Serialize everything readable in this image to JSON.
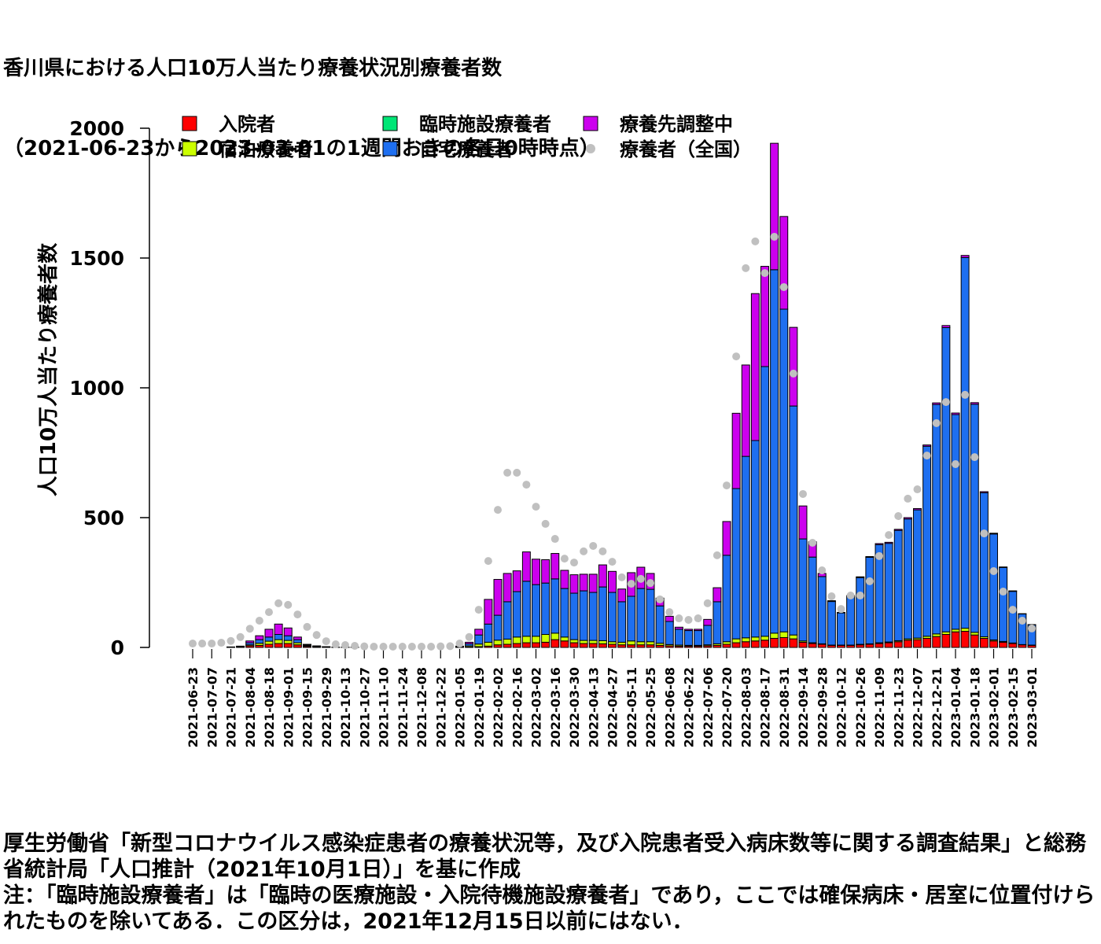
{
  "chart_data": {
    "type": "stacked_bar",
    "title": "香川県における人口10万人当たり療養状況別療養者数",
    "subtitle": "（2021-06-23から2023-03-01の1週間おきの各日0時時点）",
    "y_label": "人口10万人当たり療養者数",
    "categories": [
      "2021-06-23",
      null,
      "2021-07-07",
      null,
      "2021-07-21",
      null,
      "2021-08-04",
      null,
      "2021-08-18",
      null,
      "2021-09-01",
      null,
      "2021-09-15",
      null,
      "2021-09-29",
      null,
      "2021-10-13",
      null,
      "2021-10-27",
      null,
      "2021-11-10",
      null,
      "2021-11-24",
      null,
      "2021-12-08",
      null,
      "2021-12-22",
      null,
      "2022-01-05",
      null,
      "2022-01-19",
      null,
      "2022-02-02",
      null,
      "2022-02-16",
      null,
      "2022-03-02",
      null,
      "2022-03-16",
      null,
      "2022-03-30",
      null,
      "2022-04-13",
      null,
      "2022-04-27",
      null,
      "2022-05-11",
      null,
      "2022-05-25",
      null,
      "2022-06-08",
      null,
      "2022-06-22",
      null,
      "2022-07-06",
      null,
      "2022-07-20",
      null,
      "2022-08-03",
      null,
      "2022-08-17",
      null,
      "2022-08-31",
      null,
      "2022-09-14",
      null,
      "2022-09-28",
      null,
      "2022-10-12",
      null,
      "2022-10-26",
      null,
      "2022-11-09",
      null,
      "2022-11-23",
      null,
      "2022-12-07",
      null,
      "2022-12-21",
      null,
      "2023-01-04",
      null,
      "2023-01-18",
      null,
      "2023-02-01",
      null,
      "2023-02-15",
      null,
      "2023-03-01"
    ],
    "series": [
      {
        "name": "入院者",
        "color": "#ff0000",
        "values": [
          0,
          0,
          0,
          0,
          1,
          2,
          6,
          8,
          12,
          15,
          15,
          10,
          4,
          2,
          1,
          1,
          1,
          1,
          0,
          0,
          0,
          0,
          0,
          0,
          0,
          0,
          0,
          0,
          1,
          2,
          3,
          5,
          10,
          12,
          15,
          18,
          18,
          20,
          30,
          25,
          18,
          15,
          15,
          14,
          12,
          10,
          10,
          10,
          10,
          8,
          6,
          5,
          5,
          5,
          6,
          8,
          12,
          18,
          22,
          25,
          28,
          35,
          38,
          33,
          20,
          15,
          12,
          8,
          8,
          8,
          10,
          12,
          15,
          18,
          22,
          28,
          30,
          35,
          42,
          50,
          60,
          62,
          48,
          35,
          25,
          20,
          15,
          10,
          8
        ]
      },
      {
        "name": "宿泊療養者",
        "color": "#ccff00",
        "values": [
          0,
          0,
          0,
          0,
          0,
          1,
          4,
          8,
          12,
          15,
          12,
          8,
          3,
          2,
          1,
          0,
          0,
          0,
          0,
          0,
          0,
          0,
          0,
          0,
          0,
          0,
          0,
          0,
          1,
          4,
          10,
          15,
          18,
          20,
          25,
          25,
          25,
          30,
          25,
          15,
          12,
          12,
          12,
          12,
          10,
          10,
          15,
          12,
          12,
          8,
          5,
          4,
          3,
          3,
          4,
          6,
          10,
          15,
          15,
          15,
          15,
          20,
          22,
          15,
          5,
          3,
          2,
          1,
          1,
          1,
          2,
          2,
          3,
          3,
          4,
          5,
          6,
          8,
          10,
          10,
          10,
          12,
          10,
          6,
          4,
          3,
          2,
          1,
          1
        ]
      },
      {
        "name": "臨時施設療養者",
        "color": "#00e676",
        "values": [
          0,
          0,
          0,
          0,
          0,
          0,
          0,
          0,
          0,
          0,
          0,
          0,
          0,
          0,
          0,
          0,
          0,
          0,
          0,
          0,
          0,
          0,
          0,
          0,
          0,
          0,
          0,
          0,
          0,
          0,
          0,
          0,
          0,
          0,
          0,
          0,
          0,
          0,
          0,
          0,
          0,
          0,
          0,
          0,
          0,
          0,
          0,
          0,
          0,
          0,
          0,
          0,
          0,
          0,
          0,
          0,
          0,
          0,
          0,
          0,
          0,
          0,
          0,
          0,
          0,
          0,
          0,
          0,
          0,
          0,
          0,
          0,
          0,
          0,
          0,
          0,
          0,
          0,
          0,
          0,
          0,
          0,
          0,
          0,
          0,
          0,
          0,
          0,
          0
        ]
      },
      {
        "name": "自宅療養者",
        "color": "#1e6ff0",
        "values": [
          0,
          0,
          0,
          0,
          1,
          2,
          8,
          14,
          16,
          20,
          18,
          12,
          3,
          1,
          1,
          0,
          0,
          0,
          0,
          0,
          0,
          0,
          0,
          0,
          0,
          0,
          0,
          0,
          2,
          8,
          35,
          70,
          96,
          144,
          175,
          212,
          199,
          198,
          209,
          187,
          179,
          191,
          185,
          207,
          190,
          156,
          172,
          205,
          202,
          144,
          89,
          61,
          57,
          57,
          75,
          162,
          333,
          579,
          699,
          757,
          1039,
          1400,
          1243,
          882,
          393,
          330,
          259,
          168,
          124,
          188,
          257,
          333,
          378,
          380,
          425,
          462,
          494,
          732,
          884,
          1172,
          827,
          1428,
          879,
          555,
          408,
          285,
          199,
          118,
          78
        ]
      },
      {
        "name": "療養先調整中",
        "color": "#cc00ee",
        "values": [
          0,
          0,
          0,
          0,
          0,
          0,
          7,
          15,
          30,
          40,
          30,
          10,
          2,
          1,
          0,
          0,
          0,
          0,
          0,
          0,
          0,
          0,
          0,
          0,
          0,
          0,
          0,
          0,
          1,
          6,
          22,
          95,
          138,
          109,
          80,
          113,
          98,
          90,
          98,
          70,
          71,
          64,
          70,
          85,
          81,
          49,
          91,
          82,
          61,
          30,
          20,
          8,
          5,
          5,
          23,
          54,
          130,
          290,
          352,
          566,
          386,
          487,
          357,
          303,
          127,
          59,
          12,
          3,
          2,
          3,
          3,
          3,
          4,
          4,
          4,
          5,
          5,
          5,
          6,
          8,
          6,
          8,
          6,
          4,
          3,
          2,
          2,
          1,
          1
        ]
      }
    ],
    "national": {
      "name": "療養者（全国）",
      "color": "#c0c0c0",
      "values": [
        15,
        15,
        15,
        18,
        25,
        40,
        72,
        103,
        136,
        170,
        164,
        127,
        79,
        48,
        24,
        12,
        9,
        6,
        4,
        3,
        3,
        3,
        3,
        3,
        3,
        3,
        4,
        5,
        15,
        40,
        145,
        333,
        530,
        673,
        673,
        627,
        542,
        476,
        418,
        342,
        327,
        370,
        391,
        370,
        330,
        270,
        245,
        264,
        248,
        185,
        136,
        112,
        106,
        112,
        170,
        355,
        624,
        1121,
        1461,
        1564,
        1442,
        1582,
        1388,
        1055,
        591,
        403,
        297,
        197,
        148,
        200,
        200,
        255,
        352,
        433,
        506,
        573,
        609,
        739,
        864,
        945,
        706,
        973,
        733,
        439,
        294,
        215,
        145,
        103,
        73
      ]
    },
    "ylim": [
      0,
      2000
    ],
    "yticks": [
      0,
      500,
      1000,
      1500,
      2000
    ]
  },
  "notes": [
    "厚生労働省「新型コロナウイルス感染症患者の療養状況等，及び入院患者受入病床数等に関する調査結果」と総務省統計局「人口推計（2021年10月1日）」を基に作成",
    "注：「臨時施設療養者」は「臨時の医療施設・入院待機施設療養者」であり，ここでは確保病床・居室に位置付けられたものを除いてある．この区分は，2021年12月15日以前にはない．"
  ]
}
